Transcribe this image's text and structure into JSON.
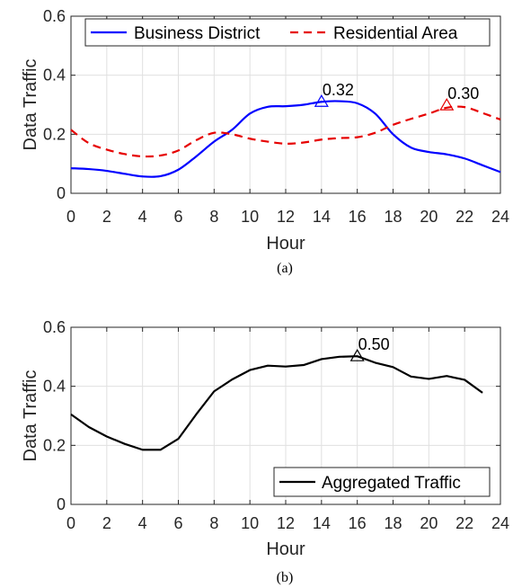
{
  "chart_data": [
    {
      "type": "line",
      "caption": "(a)",
      "xlabel": "Hour",
      "ylabel": "Data Traffic",
      "xlim": [
        0,
        24
      ],
      "ylim": [
        0,
        0.6
      ],
      "xticks": [
        "0",
        "2",
        "4",
        "6",
        "8",
        "10",
        "12",
        "14",
        "16",
        "18",
        "20",
        "22",
        "24"
      ],
      "yticks": [
        "0",
        "0.2",
        "0.4",
        "0.6"
      ],
      "grid": true,
      "legend": "top, horizontal",
      "series": [
        {
          "name": "Business District",
          "color": "#0000ff",
          "style": "solid",
          "x": [
            0,
            1,
            2,
            3,
            4,
            5,
            6,
            7,
            8,
            9,
            10,
            11,
            12,
            13,
            14,
            15,
            16,
            17,
            18,
            19,
            20,
            21,
            22,
            23,
            24
          ],
          "y": [
            0.085,
            0.082,
            0.076,
            0.066,
            0.057,
            0.058,
            0.08,
            0.125,
            0.175,
            0.215,
            0.27,
            0.293,
            0.295,
            0.3,
            0.31,
            0.312,
            0.305,
            0.27,
            0.2,
            0.155,
            0.14,
            0.132,
            0.118,
            0.095,
            0.072
          ]
        },
        {
          "name": "Residential Area",
          "color": "#e60000",
          "style": "dashed",
          "x": [
            0,
            1,
            2,
            3,
            4,
            5,
            6,
            7,
            8,
            9,
            10,
            11,
            12,
            13,
            14,
            15,
            16,
            17,
            18,
            19,
            20,
            21,
            22,
            23,
            24
          ],
          "y": [
            0.215,
            0.17,
            0.148,
            0.133,
            0.125,
            0.128,
            0.145,
            0.18,
            0.205,
            0.2,
            0.185,
            0.175,
            0.168,
            0.172,
            0.182,
            0.187,
            0.19,
            0.205,
            0.232,
            0.252,
            0.27,
            0.29,
            0.292,
            0.272,
            0.25
          ]
        }
      ],
      "annotations": [
        {
          "x": 14,
          "y": 0.31,
          "label": "0.32",
          "marker": "triangle",
          "color": "#0000ff"
        },
        {
          "x": 21,
          "y": 0.298,
          "label": "0.30",
          "marker": "triangle",
          "color": "#e60000"
        }
      ]
    },
    {
      "type": "line",
      "caption": "(b)",
      "xlabel": "Hour",
      "ylabel": "Data Traffic",
      "xlim": [
        0,
        24
      ],
      "ylim": [
        0,
        0.6
      ],
      "xticks": [
        "0",
        "2",
        "4",
        "6",
        "8",
        "10",
        "12",
        "14",
        "16",
        "18",
        "20",
        "22",
        "24"
      ],
      "yticks": [
        "0",
        "0.2",
        "0.4",
        "0.6"
      ],
      "grid": true,
      "legend": "bottom-right",
      "series": [
        {
          "name": "Aggregated Traffic",
          "color": "#000000",
          "style": "solid",
          "x": [
            0,
            1,
            2,
            3,
            4,
            5,
            6,
            7,
            8,
            9,
            10,
            11,
            12,
            13,
            14,
            15,
            16,
            17,
            18,
            19,
            20,
            21,
            22,
            23
          ],
          "y": [
            0.305,
            0.262,
            0.23,
            0.205,
            0.185,
            0.185,
            0.222,
            0.305,
            0.383,
            0.423,
            0.455,
            0.47,
            0.467,
            0.472,
            0.492,
            0.5,
            0.502,
            0.48,
            0.465,
            0.433,
            0.425,
            0.435,
            0.422,
            0.378
          ]
        }
      ],
      "annotations": [
        {
          "x": 16,
          "y": 0.502,
          "label": "0.50",
          "marker": "triangle",
          "color": "#000000"
        }
      ]
    }
  ]
}
